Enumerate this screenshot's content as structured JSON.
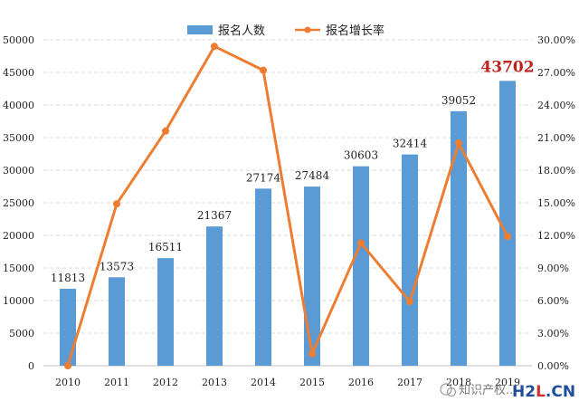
{
  "chart_data": {
    "type": "bar",
    "categories": [
      "2010",
      "2011",
      "2012",
      "2013",
      "2014",
      "2015",
      "2016",
      "2017",
      "2018",
      "2019"
    ],
    "series": [
      {
        "name": "报名人数",
        "type": "bar",
        "axis": "left",
        "values": [
          11813,
          13573,
          16511,
          21367,
          27174,
          27484,
          30603,
          32414,
          39052,
          43702
        ]
      },
      {
        "name": "报名增长率",
        "type": "line",
        "axis": "right",
        "values": [
          0.0,
          14.9,
          21.6,
          29.4,
          27.2,
          1.1,
          11.3,
          5.9,
          20.5,
          11.9
        ]
      }
    ],
    "data_labels": [
      "11813",
      "13573",
      "16511",
      "21367",
      "27174",
      "27484",
      "30603",
      "32414",
      "39052",
      "43702"
    ],
    "highlight_index": 9,
    "y_left": {
      "lim": [
        0,
        50000
      ],
      "ticks": [
        "0",
        "5000",
        "10000",
        "15000",
        "20000",
        "25000",
        "30000",
        "35000",
        "40000",
        "45000",
        "50000"
      ]
    },
    "y_right": {
      "lim": [
        0,
        30
      ],
      "ticks": [
        "0.00%",
        "3.00%",
        "6.00%",
        "9.00%",
        "12.00%",
        "15.00%",
        "18.00%",
        "21.00%",
        "24.00%",
        "27.00%",
        "30.00%"
      ]
    },
    "grid": true,
    "legend_position": "top-center",
    "colors": {
      "bar": "#5b9bd5",
      "line": "#ed7d31",
      "highlight_label": "#c0201f",
      "grid": "#d9d9d9"
    }
  },
  "watermark": {
    "text": "知识产权... ",
    "logo": "H2L.CN"
  }
}
